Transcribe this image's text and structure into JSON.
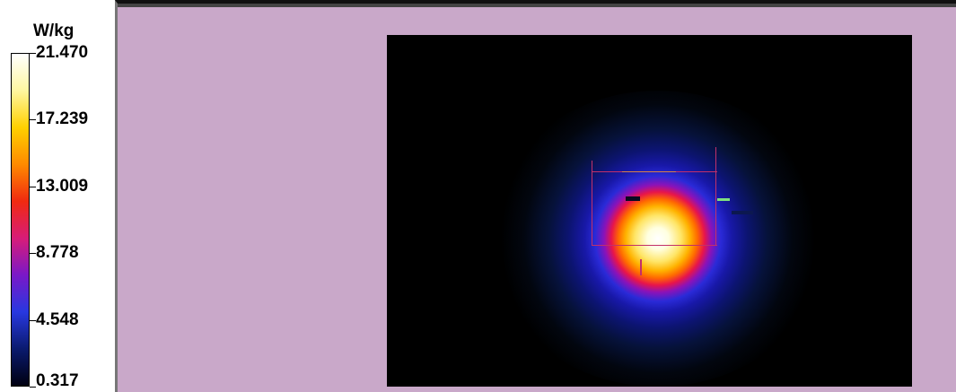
{
  "legend": {
    "unit": "W/kg",
    "scale_gradient": [
      "#000010",
      "#0a1a6e",
      "#2838e0",
      "#7a18c8",
      "#d81c78",
      "#f02a10",
      "#ff8a00",
      "#ffd000",
      "#fff7a0",
      "#ffffff"
    ],
    "ticks": [
      {
        "label": "21.470",
        "value": 21.47
      },
      {
        "label": "17.239",
        "value": 17.239
      },
      {
        "label": "13.009",
        "value": 13.009
      },
      {
        "label": "8.778",
        "value": 8.778
      },
      {
        "label": "4.548",
        "value": 4.548
      },
      {
        "label": "0.317",
        "value": 0.317
      }
    ],
    "min": 0.317,
    "max": 21.47
  },
  "view": {
    "background_color": "#c9a8c9",
    "phantom_color": "#000000",
    "hotspot_peak_value": 21.47
  }
}
